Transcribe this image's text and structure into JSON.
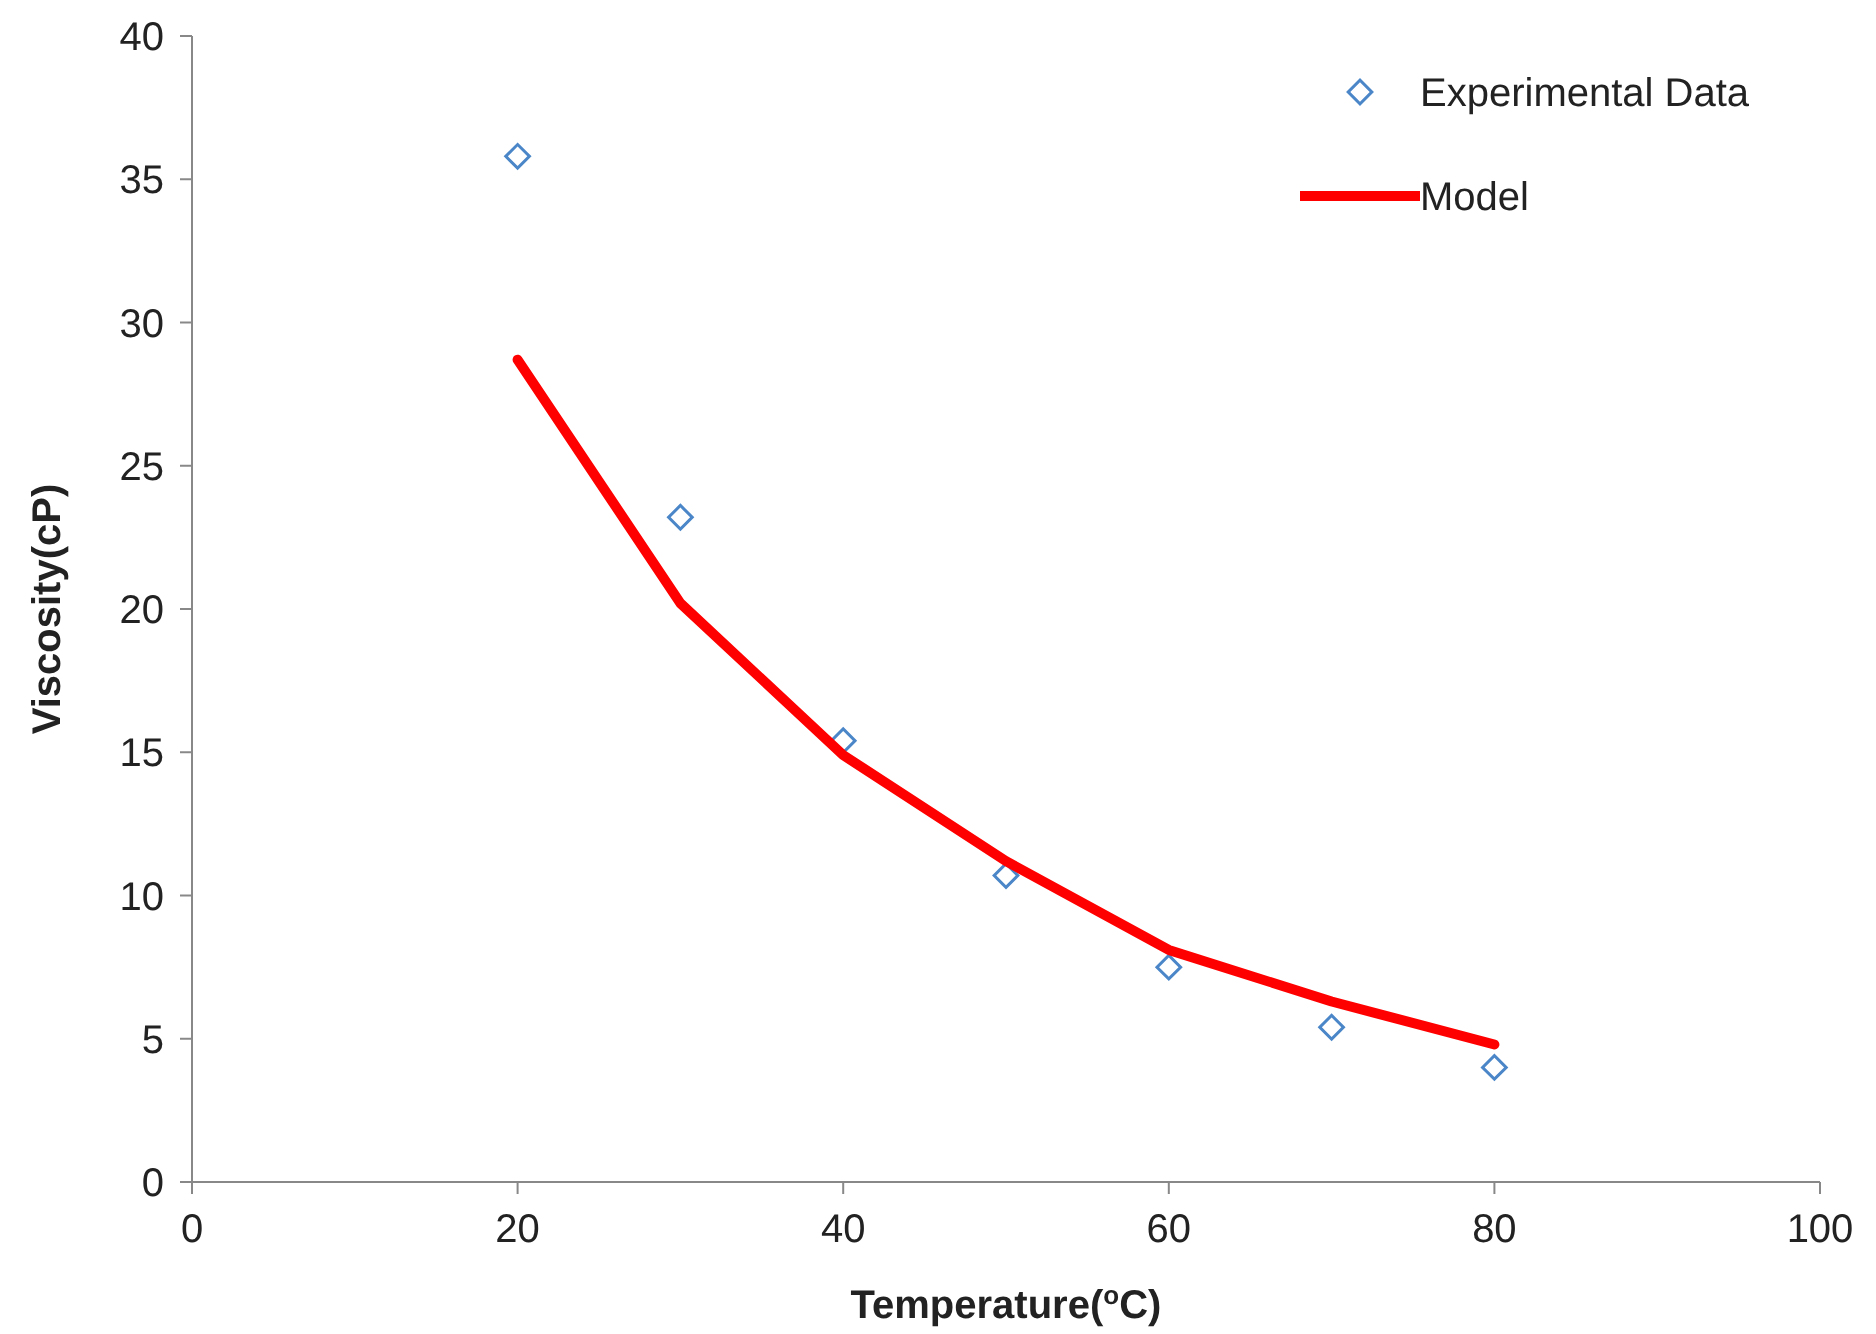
{
  "chart_data": {
    "type": "scatter",
    "xlabel": "Temperature($^{o}$C)",
    "ylabel": "Viscosity(cP)",
    "xlim": [
      0,
      100
    ],
    "xticks": [
      0,
      20,
      40,
      60,
      80,
      100
    ],
    "ylim": [
      0,
      40
    ],
    "yticks": [
      0,
      5,
      10,
      15,
      20,
      25,
      30,
      35,
      40
    ],
    "grid": false,
    "legend": "top right",
    "series": [
      {
        "name": "Experimental Data",
        "marker": "diamond",
        "color": "#4a86c8",
        "x": [
          20,
          30,
          40,
          50,
          60,
          70,
          80
        ],
        "values": [
          35.8,
          23.2,
          15.4,
          10.7,
          7.5,
          5.4,
          4.0
        ]
      },
      {
        "name": "Model",
        "type": "line",
        "marker": "none",
        "color": "#ff0000",
        "x": [
          20,
          30,
          40,
          50,
          60,
          70,
          80
        ],
        "values": [
          28.7,
          20.2,
          14.9,
          11.2,
          8.1,
          6.3,
          4.8
        ]
      }
    ]
  }
}
